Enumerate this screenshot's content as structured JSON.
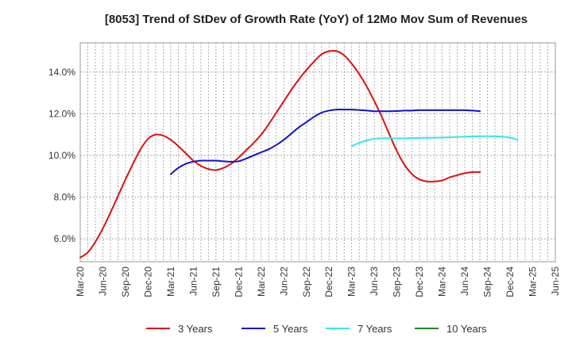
{
  "chart_data": {
    "type": "line",
    "title": "[8053]  Trend of StDev of Growth Rate (YoY) of 12Mo Mov Sum of Revenues",
    "xlabel": "",
    "ylabel": "",
    "x_start": "2020-03",
    "x_end": "2025-06",
    "ylim": [
      4.9,
      15.4
    ],
    "y_ticks": [
      6.0,
      8.0,
      10.0,
      12.0,
      14.0
    ],
    "y_tick_labels": [
      "6.0%",
      "8.0%",
      "10.0%",
      "12.0%",
      "14.0%"
    ],
    "x_tick_labels": [
      "Mar-20",
      "Jun-20",
      "Sep-20",
      "Dec-20",
      "Mar-21",
      "Jun-21",
      "Sep-21",
      "Dec-21",
      "Mar-22",
      "Jun-22",
      "Sep-22",
      "Dec-22",
      "Mar-23",
      "Jun-23",
      "Sep-23",
      "Dec-23",
      "Mar-24",
      "Jun-24",
      "Sep-24",
      "Dec-24",
      "Mar-25",
      "Jun-25"
    ],
    "grid": true,
    "legend_position": "bottom",
    "series": [
      {
        "name": "3 Years",
        "color": "#dd1111",
        "start_index": 0,
        "values": [
          5.1,
          5.35,
          5.85,
          6.5,
          7.25,
          8.05,
          8.85,
          9.6,
          10.3,
          10.8,
          11.0,
          10.95,
          10.75,
          10.45,
          10.1,
          9.75,
          9.5,
          9.35,
          9.3,
          9.4,
          9.6,
          9.9,
          10.25,
          10.6,
          11.0,
          11.5,
          12.05,
          12.6,
          13.15,
          13.65,
          14.1,
          14.5,
          14.85,
          15.0,
          15.0,
          14.8,
          14.4,
          13.9,
          13.3,
          12.6,
          11.85,
          11.0,
          10.2,
          9.55,
          9.1,
          8.85,
          8.75,
          8.75,
          8.8,
          8.95,
          9.05,
          9.15,
          9.2,
          9.2
        ]
      },
      {
        "name": "5 Years",
        "color": "#1111cc",
        "start_index": 12,
        "values": [
          9.1,
          9.4,
          9.6,
          9.7,
          9.75,
          9.75,
          9.75,
          9.72,
          9.7,
          9.72,
          9.85,
          10.0,
          10.15,
          10.3,
          10.5,
          10.75,
          11.05,
          11.35,
          11.6,
          11.85,
          12.05,
          12.15,
          12.2,
          12.2,
          12.2,
          12.18,
          12.15,
          12.12,
          12.12,
          12.12,
          12.13,
          12.15,
          12.15,
          12.17,
          12.17,
          12.17,
          12.17,
          12.17,
          12.17,
          12.17,
          12.15,
          12.12
        ]
      },
      {
        "name": "7 Years",
        "color": "#33e8e8",
        "start_index": 36,
        "values": [
          10.45,
          10.6,
          10.72,
          10.8,
          10.82,
          10.82,
          10.82,
          10.82,
          10.83,
          10.84,
          10.85,
          10.85,
          10.86,
          10.87,
          10.88,
          10.9,
          10.91,
          10.92,
          10.92,
          10.92,
          10.9,
          10.85,
          10.75
        ]
      },
      {
        "name": "10 Years",
        "color": "#228822",
        "start_index": 0,
        "values": []
      }
    ]
  }
}
